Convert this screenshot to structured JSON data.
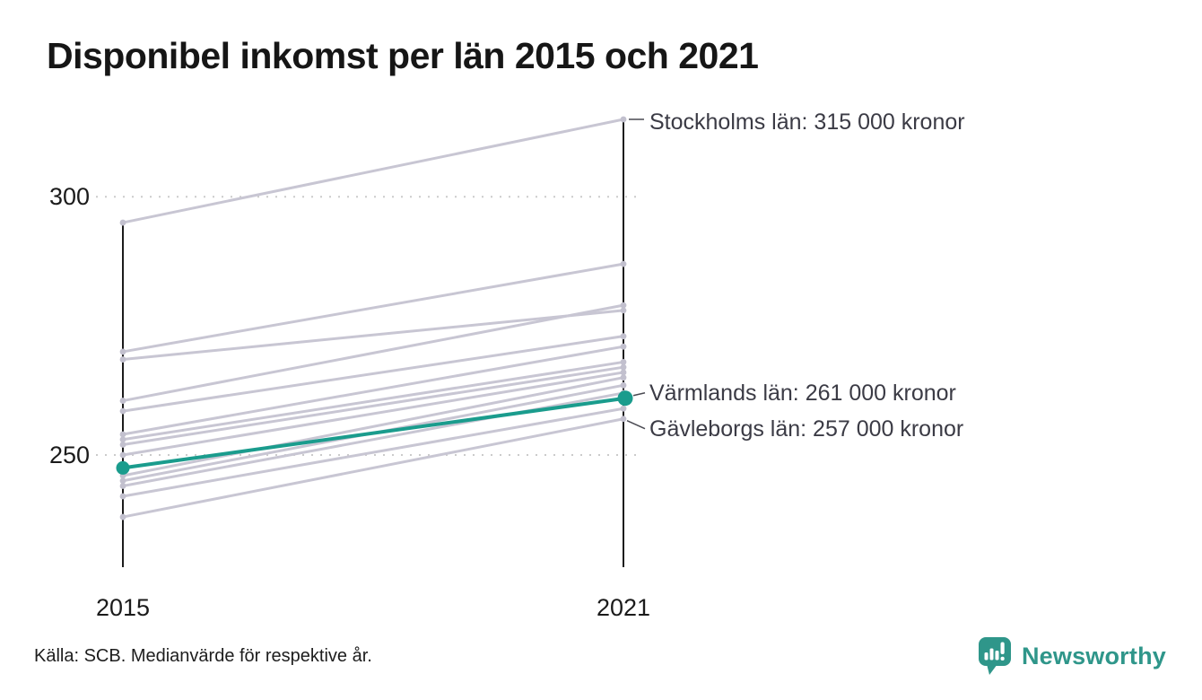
{
  "title": "Disponibel inkomst per län 2015 och 2021",
  "source": "Källa: SCB. Medianvärde för respektive år.",
  "logo": {
    "name": "Newsworthy",
    "icon": "bar-chart-speech-bubble-icon",
    "color": "#2f968a"
  },
  "colors": {
    "highlight": "#1a9c8d",
    "line_gray": "#c8c6d3",
    "dot_gray": "#c2c0ce",
    "axis": "#1c1c1c",
    "grid": "#cbcbcb",
    "annotation_text": "#3b3b45",
    "connector": "#4a4a52",
    "tick_text": "#1b1b1b"
  },
  "chart_data": {
    "type": "line",
    "subtype": "slope-chart",
    "title": "Disponibel inkomst per län 2015 och 2021",
    "x_categories": [
      "2015",
      "2021"
    ],
    "yticks": [
      250,
      300
    ],
    "ylim": [
      230,
      320
    ],
    "grid": "dotted-horizontal-at-yticks",
    "legend": "none",
    "series": [
      {
        "name": "Stockholms län",
        "values": [
          295,
          315
        ],
        "highlight": false,
        "label": "Stockholms län: 315 000 kronor",
        "label_dy": 3,
        "tick": "horizontal"
      },
      {
        "name": "",
        "values": [
          270,
          287
        ],
        "highlight": false
      },
      {
        "name": "",
        "values": [
          268.5,
          278
        ],
        "highlight": false
      },
      {
        "name": "",
        "values": [
          260.5,
          279
        ],
        "highlight": false
      },
      {
        "name": "",
        "values": [
          258.5,
          273
        ],
        "highlight": false
      },
      {
        "name": "",
        "values": [
          254,
          271
        ],
        "highlight": false
      },
      {
        "name": "",
        "values": [
          253,
          268
        ],
        "highlight": false
      },
      {
        "name": "",
        "values": [
          252,
          267
        ],
        "highlight": false
      },
      {
        "name": "",
        "values": [
          250,
          266
        ],
        "highlight": false
      },
      {
        "name": "Värmlands län",
        "values": [
          247.5,
          261
        ],
        "highlight": true,
        "label": "Värmlands län: 261 000 kronor",
        "label_dy": -6,
        "tick": "diagonal-up"
      },
      {
        "name": "",
        "values": [
          246,
          265
        ],
        "highlight": false
      },
      {
        "name": "",
        "values": [
          245,
          263.5
        ],
        "highlight": false
      },
      {
        "name": "",
        "values": [
          244,
          262
        ],
        "highlight": false
      },
      {
        "name": "",
        "values": [
          242,
          259
        ],
        "highlight": false
      },
      {
        "name": "Gävleborgs län",
        "values": [
          238,
          257
        ],
        "highlight": false,
        "label": "Gävleborgs län: 257 000 kronor",
        "label_dy": 11,
        "tick": "diagonal-down"
      }
    ]
  }
}
